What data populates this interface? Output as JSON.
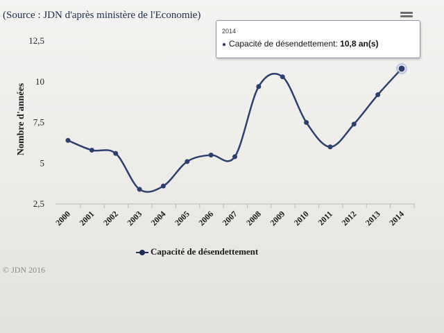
{
  "source": "(Source : JDN d'après ministère de l'Economie)",
  "copyright": "© JDN 2016",
  "colors": {
    "line": "#2d3f6e",
    "highlight": "#7f95c8"
  },
  "icons": {
    "menu": "hamburger-menu-icon"
  },
  "tooltip": {
    "year": "2014",
    "series": "Capacité de désendettement:",
    "value": "10,8 an(s)"
  },
  "chart_data": {
    "type": "line",
    "ylabel": "Nombre d'années",
    "xlabel": "",
    "ylim": [
      2.5,
      12.5
    ],
    "yticks": [
      2.5,
      5,
      7.5,
      10,
      12.5
    ],
    "ytick_labels": [
      "2,5",
      "5",
      "7,5",
      "10",
      "12,5"
    ],
    "categories": [
      "2000",
      "2001",
      "2002",
      "2003",
      "2004",
      "2005",
      "2006",
      "2007",
      "2008",
      "2009",
      "2010",
      "2011",
      "2012",
      "2013",
      "2014"
    ],
    "series": [
      {
        "name": "Capacité de désendettement",
        "values": [
          6.4,
          5.8,
          5.6,
          3.4,
          3.6,
          5.1,
          5.5,
          5.4,
          9.7,
          10.3,
          7.5,
          6.0,
          7.4,
          9.2,
          10.8
        ]
      }
    ],
    "legend": "bottom-left",
    "grid": false
  }
}
